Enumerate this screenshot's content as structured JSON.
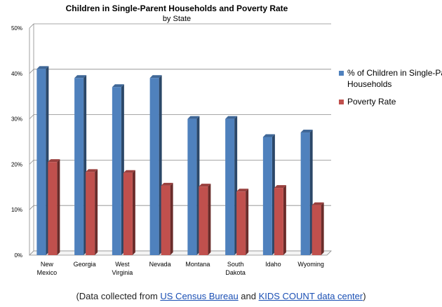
{
  "chart_data": {
    "type": "bar",
    "title": "Children in Single-Parent Households and Poverty Rate",
    "subtitle": "by State",
    "categories": [
      [
        "New",
        "Mexico"
      ],
      [
        "Georgia"
      ],
      [
        "West",
        "Virginia"
      ],
      [
        "Nevada"
      ],
      [
        "Montana"
      ],
      [
        "South",
        "Dakota"
      ],
      [
        "Idaho"
      ],
      [
        "Wyoming"
      ]
    ],
    "series": [
      {
        "name": "% of Children in Single-Parent Households",
        "values": [
          41,
          39,
          37,
          39,
          30,
          30,
          26,
          27
        ],
        "color": "#4f81bd"
      },
      {
        "name": "Poverty Rate",
        "values": [
          20.5,
          18.3,
          18.1,
          15.3,
          15.1,
          14.0,
          14.8,
          11.0
        ],
        "color": "#c0504d"
      }
    ],
    "ylim": [
      0,
      50
    ],
    "yticks": [
      "0%",
      "10%",
      "20%",
      "30%",
      "40%",
      "50%"
    ],
    "grid": true,
    "legend_position": "right",
    "legend_lines": [
      [
        "% of Children in Single-Parent",
        "Households"
      ],
      [
        "Poverty Rate"
      ]
    ]
  },
  "source": {
    "prefix": "(Data collected from ",
    "link1": "US Census Bureau",
    "middle": " and ",
    "link2": "KIDS COUNT data center",
    "suffix": ")"
  }
}
